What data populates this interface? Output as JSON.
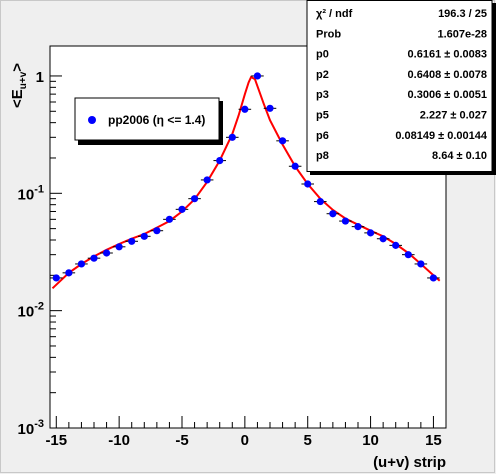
{
  "chart_data": {
    "type": "scatter",
    "xlabel": "(u+v) strip",
    "ylabel_main": "<E",
    "ylabel_sub": "u+v",
    "ylabel_close": ">",
    "x_ticks": [
      "-15",
      "-10",
      "-5",
      "0",
      "5",
      "10",
      "15"
    ],
    "x_tick_values": [
      -15,
      -10,
      -5,
      0,
      5,
      10,
      15
    ],
    "xlim": [
      -15.5,
      16
    ],
    "ylim": [
      0.001,
      1.8
    ],
    "log_y": true,
    "y_ticks": [
      {
        "value": 1,
        "base": "1",
        "exp": ""
      },
      {
        "value": 0.1,
        "base": "10",
        "exp": "-1"
      },
      {
        "value": 0.01,
        "base": "10",
        "exp": "-2"
      },
      {
        "value": 0.001,
        "base": "10",
        "exp": "-3"
      }
    ],
    "series": [
      {
        "name": "pp2006 (η <= 1.4)",
        "color": "#0000ff",
        "x": [
          -15,
          -14,
          -13,
          -12,
          -11,
          -10,
          -9,
          -8,
          -7,
          -6,
          -5,
          -4,
          -3,
          -2,
          -1,
          0,
          1,
          2,
          3,
          4,
          5,
          6,
          7,
          8,
          9,
          10,
          11,
          12,
          13,
          14,
          15
        ],
        "y": [
          0.019,
          0.021,
          0.025,
          0.028,
          0.031,
          0.035,
          0.039,
          0.043,
          0.048,
          0.06,
          0.073,
          0.09,
          0.13,
          0.19,
          0.3,
          0.52,
          1.0,
          0.53,
          0.28,
          0.17,
          0.12,
          0.085,
          0.067,
          0.058,
          0.052,
          0.046,
          0.041,
          0.036,
          0.03,
          0.025,
          0.019
        ]
      }
    ],
    "fit": {
      "color": "#ff0000",
      "x": [
        -15.3,
        -14,
        -13,
        -12,
        -11,
        -10,
        -9,
        -8,
        -7,
        -6,
        -5,
        -4,
        -3,
        -2,
        -1,
        -0.5,
        0,
        0.3,
        0.5,
        0.8,
        1,
        1.5,
        2,
        3,
        4,
        5,
        6,
        7,
        8,
        9,
        10,
        11,
        12,
        13,
        14,
        15,
        15.5
      ],
      "y": [
        0.0155,
        0.021,
        0.025,
        0.029,
        0.033,
        0.037,
        0.041,
        0.045,
        0.051,
        0.058,
        0.07,
        0.089,
        0.125,
        0.19,
        0.32,
        0.46,
        0.7,
        0.88,
        0.98,
        0.94,
        0.82,
        0.58,
        0.42,
        0.26,
        0.17,
        0.12,
        0.09,
        0.072,
        0.061,
        0.054,
        0.048,
        0.043,
        0.037,
        0.031,
        0.025,
        0.02,
        0.018
      ]
    },
    "legend": {
      "label": "pp2006 (η <= 1.4)",
      "placement": "top-left"
    },
    "stats": [
      {
        "label": "χ² / ndf",
        "value": "196.3 / 25"
      },
      {
        "label": "Prob",
        "value": "1.607e-28"
      },
      {
        "label": "p0",
        "value": "0.6161 ± 0.0083"
      },
      {
        "label": "p2",
        "value": "0.6408 ± 0.0078"
      },
      {
        "label": "p3",
        "value": "0.3006 ± 0.0051"
      },
      {
        "label": "p5",
        "value": "2.227 ± 0.027"
      },
      {
        "label": "p6",
        "value": "0.08149 ± 0.00144"
      },
      {
        "label": "p8",
        "value": "8.64 ± 0.10"
      }
    ]
  }
}
